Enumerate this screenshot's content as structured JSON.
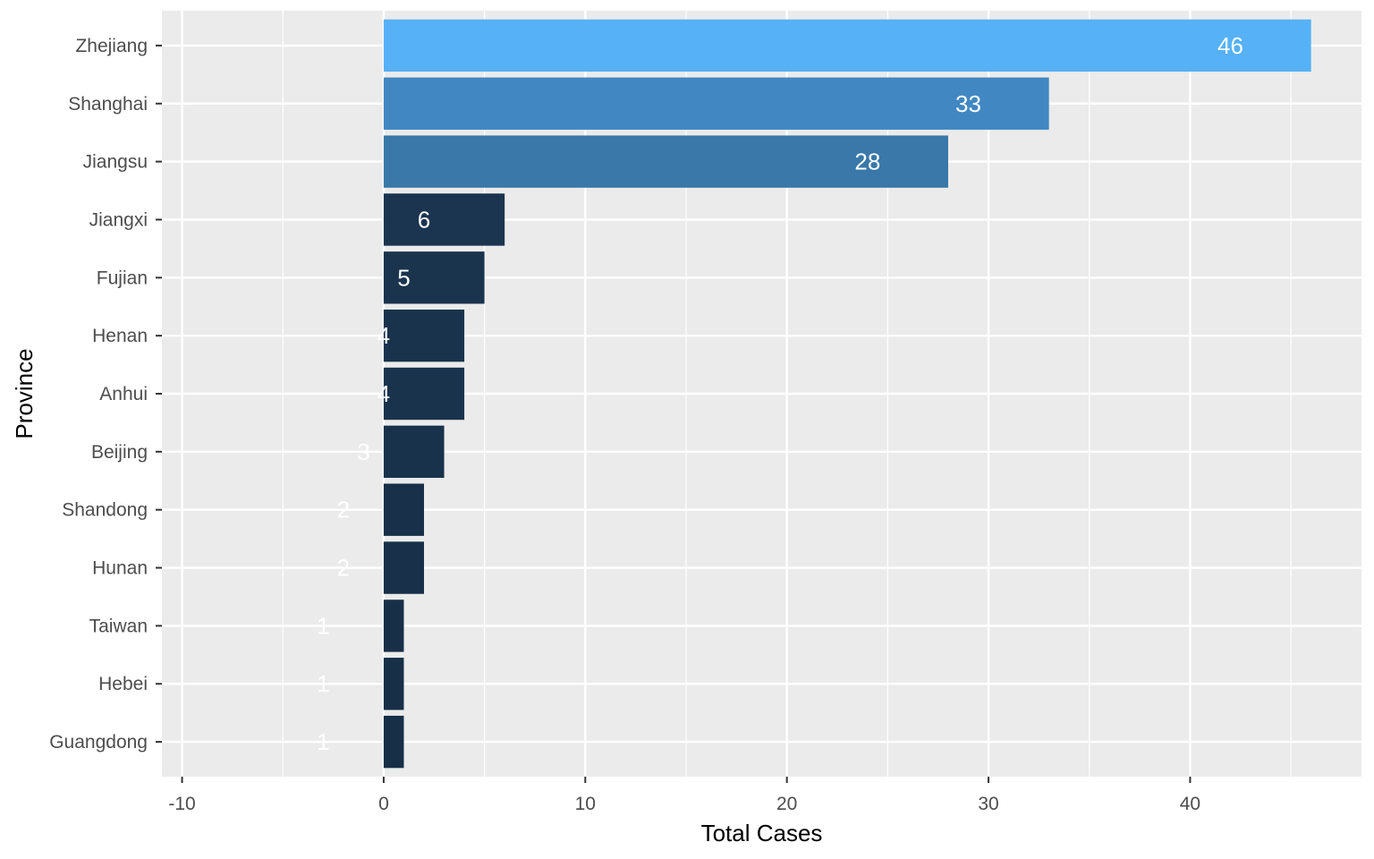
{
  "chart_data": {
    "type": "bar",
    "orientation": "horizontal",
    "xlabel": "Total Cases",
    "ylabel": "Province",
    "xlim": [
      -11,
      48.5
    ],
    "x_ticks": [
      -10,
      0,
      10,
      20,
      30,
      40
    ],
    "x_tick_labels": [
      "-10",
      "0",
      "10",
      "20",
      "30",
      "40"
    ],
    "grid": true,
    "background": "#EBEBEB",
    "categories": [
      "Zhejiang",
      "Shanghai",
      "Jiangsu",
      "Jiangxi",
      "Fujian",
      "Henan",
      "Anhui",
      "Beijing",
      "Shandong",
      "Hunan",
      "Taiwan",
      "Hebei",
      "Guangdong"
    ],
    "values": [
      46,
      33,
      28,
      6,
      5,
      4,
      4,
      3,
      2,
      2,
      1,
      1,
      1
    ],
    "value_labels": [
      "46",
      "33",
      "28",
      "6",
      "5",
      "4",
      "4",
      "3",
      "2",
      "2",
      "1",
      "1",
      "1"
    ],
    "colors": [
      "#56B1F7",
      "#4187C2",
      "#3978A8",
      "#1B3550",
      "#1A344E",
      "#1A334D",
      "#1A334D",
      "#19324B",
      "#183049",
      "#183049",
      "#172F47",
      "#172F47",
      "#172F47"
    ],
    "label_color": "#FFFFFF",
    "label_position": "bar end shifted left by 4 units",
    "color_scale": {
      "low": "#132B43",
      "high": "#56B1F7"
    }
  }
}
